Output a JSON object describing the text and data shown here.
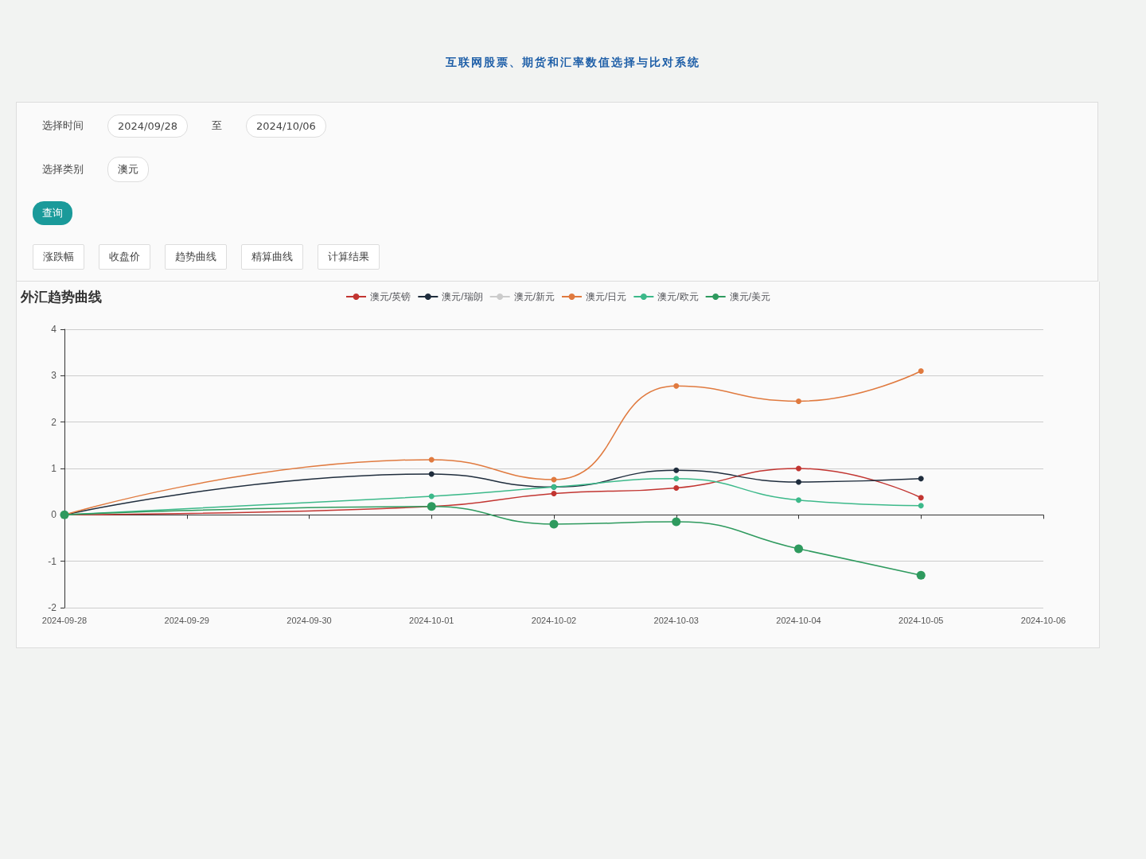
{
  "chart_data": {
    "type": "line",
    "title": "外汇趋势曲线",
    "subtitle": "互联网股票、期货和汇率数值选择与比对系统",
    "annotations": [
      "选择时间",
      "2024/09/28",
      "至",
      "2024/10/06",
      "选择类别",
      "澳元",
      "查询",
      "涨跌幅",
      "收盘价",
      "趋势曲线",
      "精算曲线",
      "计算结果"
    ],
    "x": [
      "2024-09-28",
      "2024-10-01",
      "2024-10-02",
      "2024-10-03",
      "2024-10-04",
      "2024-10-05"
    ],
    "series": [
      {
        "name": "澳元/英镑",
        "color": "#c23531",
        "values": [
          0,
          0.18,
          0.46,
          0.58,
          1.0,
          0.37
        ]
      },
      {
        "name": "澳元/瑞朗",
        "color": "#1f2d3d",
        "values": [
          0,
          0.88,
          0.6,
          0.96,
          0.71,
          0.78
        ]
      },
      {
        "name": "澳元/新元",
        "color": "#cccccc",
        "values": [
          null,
          null,
          null,
          null,
          null,
          null
        ]
      },
      {
        "name": "澳元/日元",
        "color": "#e07a3f",
        "values": [
          0,
          1.19,
          0.76,
          2.78,
          2.45,
          3.1
        ]
      },
      {
        "name": "澳元/欧元",
        "color": "#3cb98a",
        "values": [
          0,
          0.4,
          0.6,
          0.78,
          0.32,
          0.2
        ]
      },
      {
        "name": "澳元/美元",
        "color": "#2e9a5e",
        "values": [
          0,
          0.18,
          -0.2,
          -0.15,
          -0.73,
          -1.3
        ]
      }
    ],
    "xlim": [
      "2024-09-28",
      "2024-10-06"
    ],
    "xticks": [
      "2024-09-28",
      "2024-09-29",
      "2024-09-30",
      "2024-10-01",
      "2024-10-02",
      "2024-10-03",
      "2024-10-04",
      "2024-10-05",
      "2024-10-06"
    ],
    "ylim": [
      -2,
      4
    ],
    "yticks": [
      -2,
      -1,
      0,
      1,
      2,
      3,
      4
    ],
    "grid": "y",
    "legend": "top",
    "marker": "circle",
    "line_style": "solid"
  }
}
